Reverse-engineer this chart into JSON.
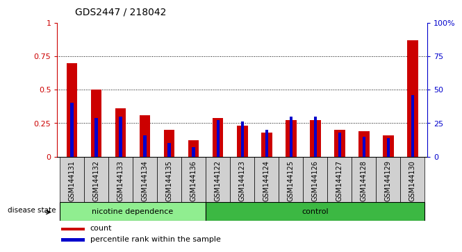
{
  "title": "GDS2447 / 218042",
  "categories": [
    "GSM144131",
    "GSM144132",
    "GSM144133",
    "GSM144134",
    "GSM144135",
    "GSM144136",
    "GSM144122",
    "GSM144123",
    "GSM144124",
    "GSM144125",
    "GSM144126",
    "GSM144127",
    "GSM144128",
    "GSM144129",
    "GSM144130"
  ],
  "red_values": [
    0.7,
    0.5,
    0.36,
    0.31,
    0.2,
    0.12,
    0.29,
    0.23,
    0.18,
    0.27,
    0.27,
    0.2,
    0.19,
    0.16,
    0.87
  ],
  "blue_values": [
    0.4,
    0.29,
    0.3,
    0.16,
    0.1,
    0.07,
    0.27,
    0.26,
    0.2,
    0.3,
    0.3,
    0.18,
    0.15,
    0.14,
    0.46
  ],
  "group1_label": "nicotine dependence",
  "group2_label": "control",
  "group1_count": 6,
  "group2_count": 9,
  "group1_color": "#90EE90",
  "group2_color": "#3CB843",
  "disease_state_label": "disease state",
  "red_color": "#CC0000",
  "blue_color": "#0000CC",
  "legend_red": "count",
  "legend_blue": "percentile rank within the sample",
  "ylim": [
    0,
    1.0
  ],
  "yticks": [
    0,
    0.25,
    0.5,
    0.75,
    1.0
  ],
  "ytick_labels_left": [
    "0",
    "0.25",
    "0.5",
    "0.75",
    "1"
  ],
  "ytick_labels_right": [
    "0",
    "25",
    "50",
    "75",
    "100%"
  ],
  "bg_color": "#ffffff",
  "axis_color_left": "#CC0000",
  "axis_color_right": "#0000CC",
  "xtick_bg_color": "#d0d0d0",
  "red_bar_width": 0.45,
  "blue_bar_width": 0.12
}
